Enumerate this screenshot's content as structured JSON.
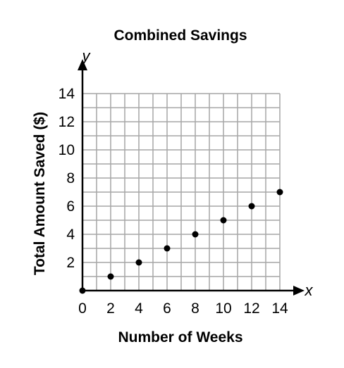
{
  "chart_data": {
    "type": "scatter",
    "title": "Combined Savings",
    "xlabel": "Number of Weeks",
    "ylabel": "Total Amount Saved ($)",
    "x_axis_letter": "x",
    "y_axis_letter": "y",
    "xlim": [
      0,
      14
    ],
    "ylim": [
      0,
      14
    ],
    "x_ticks": [
      "0",
      "2",
      "4",
      "6",
      "8",
      "10",
      "12",
      "14"
    ],
    "y_ticks": [
      "2",
      "4",
      "6",
      "8",
      "10",
      "12",
      "14"
    ],
    "grid": true,
    "x": [
      0,
      2,
      4,
      6,
      8,
      10,
      12,
      14
    ],
    "y": [
      0,
      1,
      2,
      3,
      4,
      5,
      6,
      7
    ]
  }
}
